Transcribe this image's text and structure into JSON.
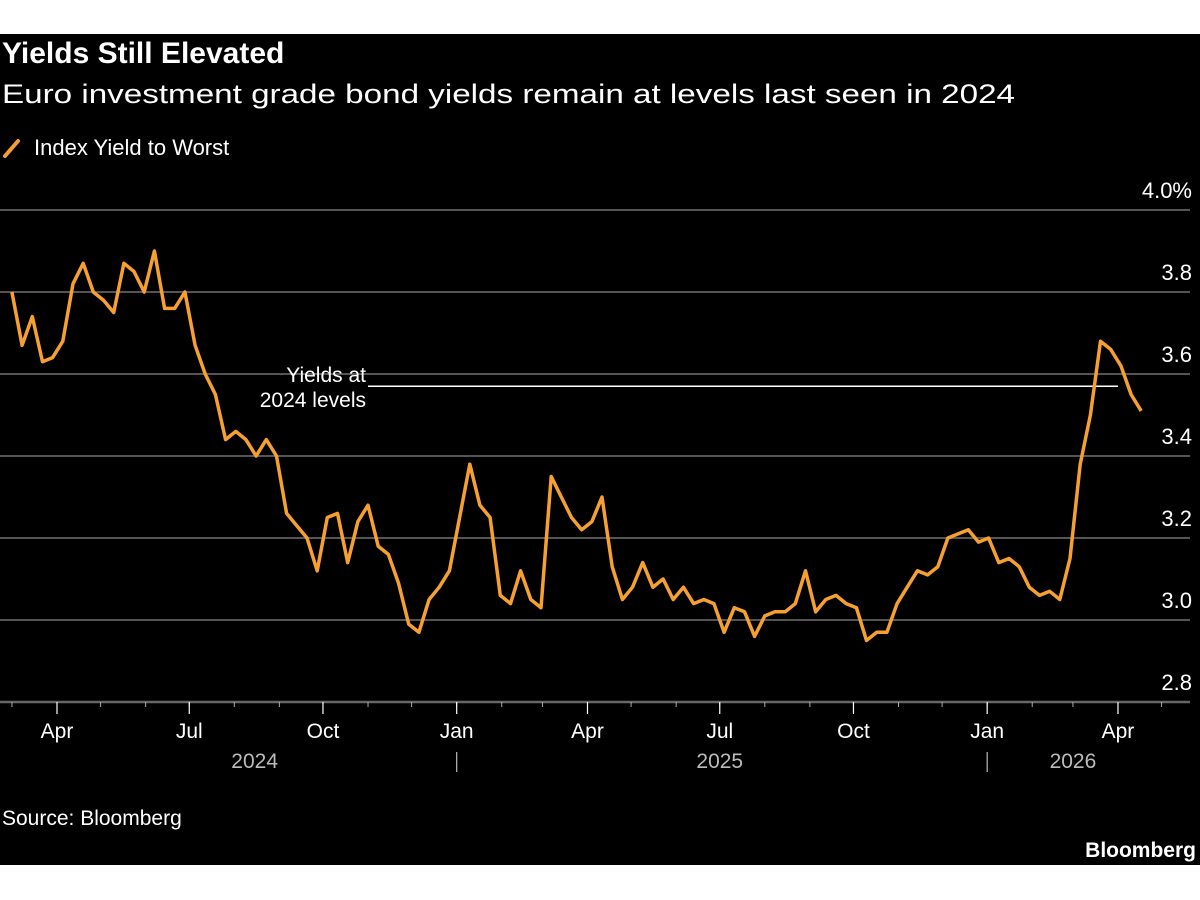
{
  "header": {
    "title": "Yields Still Elevated",
    "subtitle": "Euro investment grade bond yields remain at levels last seen in 2024"
  },
  "footer": {
    "source": "Source: Bloomberg",
    "logo": "Bloomberg"
  },
  "colors": {
    "background": "#000000",
    "series": "#f5a030",
    "grid": "#555555",
    "annotation_line": "#ffffff"
  },
  "chart_data": {
    "type": "line",
    "title": "Yields Still Elevated",
    "subtitle": "Euro investment grade bond yields remain at levels last seen in 2024",
    "legend": {
      "position": "top-left",
      "entries": [
        "Index Yield to Worst"
      ]
    },
    "ylim": [
      2.8,
      4.0
    ],
    "y_axis_side": "right",
    "y_ticks": [
      4.0,
      3.8,
      3.6,
      3.4,
      3.2,
      3.0,
      2.8
    ],
    "y_tick_labels": [
      "4.0%",
      "3.8",
      "3.6",
      "3.4",
      "3.2",
      "3.0",
      "2.8"
    ],
    "grid": true,
    "x_ticks": [
      {
        "date": "2024-04-01",
        "label": "Apr"
      },
      {
        "date": "2024-07-01",
        "label": "Jul"
      },
      {
        "date": "2024-10-01",
        "label": "Oct"
      },
      {
        "date": "2025-01-01",
        "label": "Jan"
      },
      {
        "date": "2025-04-01",
        "label": "Apr"
      },
      {
        "date": "2025-07-01",
        "label": "Jul"
      },
      {
        "date": "2025-10-01",
        "label": "Oct"
      },
      {
        "date": "2026-01-01",
        "label": "Jan"
      },
      {
        "date": "2026-04-01",
        "label": "Apr"
      }
    ],
    "year_labels": [
      {
        "label": "2024",
        "center": "2024-08-15"
      },
      {
        "label": "2025",
        "center": "2025-07-01"
      },
      {
        "label": "2026",
        "center": "2026-03-01"
      }
    ],
    "year_separators": [
      "2025-01-01",
      "2026-01-01"
    ],
    "annotation": {
      "text_lines": [
        "Yields at",
        "2024 levels"
      ],
      "y": 3.57,
      "from": "2024-10-20",
      "to": "2026-04-01"
    },
    "series": [
      {
        "name": "Index Yield to Worst",
        "x": [
          "2024-03-01",
          "2024-03-08",
          "2024-03-15",
          "2024-03-22",
          "2024-03-29",
          "2024-04-05",
          "2024-04-12",
          "2024-04-19",
          "2024-04-26",
          "2024-05-03",
          "2024-05-10",
          "2024-05-17",
          "2024-05-24",
          "2024-05-31",
          "2024-06-07",
          "2024-06-14",
          "2024-06-21",
          "2024-06-28",
          "2024-07-05",
          "2024-07-12",
          "2024-07-19",
          "2024-07-26",
          "2024-08-02",
          "2024-08-09",
          "2024-08-16",
          "2024-08-23",
          "2024-08-30",
          "2024-09-06",
          "2024-09-13",
          "2024-09-20",
          "2024-09-27",
          "2024-10-04",
          "2024-10-11",
          "2024-10-18",
          "2024-10-25",
          "2024-11-01",
          "2024-11-08",
          "2024-11-15",
          "2024-11-22",
          "2024-11-29",
          "2024-12-06",
          "2024-12-13",
          "2024-12-20",
          "2024-12-27",
          "2025-01-03",
          "2025-01-10",
          "2025-01-17",
          "2025-01-24",
          "2025-01-31",
          "2025-02-07",
          "2025-02-14",
          "2025-02-21",
          "2025-02-28",
          "2025-03-07",
          "2025-03-14",
          "2025-03-21",
          "2025-03-28",
          "2025-04-04",
          "2025-04-11",
          "2025-04-18",
          "2025-04-25",
          "2025-05-02",
          "2025-05-09",
          "2025-05-16",
          "2025-05-23",
          "2025-05-30",
          "2025-06-06",
          "2025-06-13",
          "2025-06-20",
          "2025-06-27",
          "2025-07-04",
          "2025-07-11",
          "2025-07-18",
          "2025-07-25",
          "2025-08-01",
          "2025-08-08",
          "2025-08-15",
          "2025-08-22",
          "2025-08-29",
          "2025-09-05",
          "2025-09-12",
          "2025-09-19",
          "2025-09-26",
          "2025-10-03",
          "2025-10-10",
          "2025-10-17",
          "2025-10-24",
          "2025-10-31",
          "2025-11-07",
          "2025-11-14",
          "2025-11-21",
          "2025-11-28",
          "2025-12-05",
          "2025-12-12",
          "2025-12-19",
          "2025-12-26",
          "2026-01-02",
          "2026-01-09",
          "2026-01-16",
          "2026-01-23",
          "2026-01-30",
          "2026-02-06",
          "2026-02-13",
          "2026-02-20",
          "2026-02-27",
          "2026-03-06",
          "2026-03-13",
          "2026-03-20",
          "2026-03-27",
          "2026-04-03",
          "2026-04-10",
          "2026-04-17"
        ],
        "y": [
          3.8,
          3.67,
          3.74,
          3.63,
          3.64,
          3.68,
          3.82,
          3.87,
          3.8,
          3.78,
          3.75,
          3.87,
          3.85,
          3.8,
          3.9,
          3.76,
          3.76,
          3.8,
          3.67,
          3.6,
          3.55,
          3.44,
          3.46,
          3.44,
          3.4,
          3.44,
          3.4,
          3.26,
          3.23,
          3.2,
          3.12,
          3.25,
          3.26,
          3.14,
          3.24,
          3.28,
          3.18,
          3.16,
          3.09,
          2.99,
          2.97,
          3.05,
          3.08,
          3.12,
          3.25,
          3.38,
          3.28,
          3.25,
          3.06,
          3.04,
          3.12,
          3.05,
          3.03,
          3.35,
          3.3,
          3.25,
          3.22,
          3.24,
          3.3,
          3.13,
          3.05,
          3.08,
          3.14,
          3.08,
          3.1,
          3.05,
          3.08,
          3.04,
          3.05,
          3.04,
          2.97,
          3.03,
          3.02,
          2.96,
          3.01,
          3.02,
          3.02,
          3.04,
          3.12,
          3.02,
          3.05,
          3.06,
          3.04,
          3.03,
          2.95,
          2.97,
          2.97,
          3.04,
          3.08,
          3.12,
          3.11,
          3.13,
          3.2,
          3.21,
          3.22,
          3.19,
          3.2,
          3.14,
          3.15,
          3.13,
          3.08,
          3.06,
          3.07,
          3.05,
          3.15,
          3.38,
          3.5,
          3.68,
          3.66,
          3.62,
          3.55,
          3.51
        ]
      }
    ]
  }
}
